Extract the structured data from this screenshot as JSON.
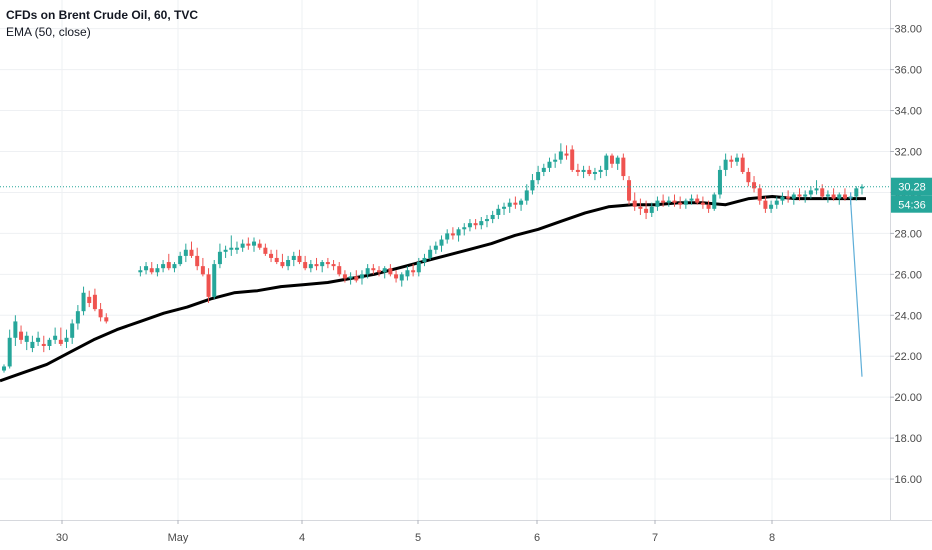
{
  "legend": {
    "symbol_line": "CFDs on Brent Crude Oil, 60, TVC",
    "indicator_line": "EMA (50, close)"
  },
  "price_badge": {
    "price": "30.28",
    "countdown": "54:36"
  },
  "colors": {
    "up": "#26a69a",
    "down": "#ef5350",
    "ema": "#000000",
    "projection": "#5eaed8",
    "price_badge": "#26a69a",
    "grid": "#eef0f3",
    "axis_text": "#4a4a4a"
  },
  "chart_data": {
    "type": "candlestick",
    "y_axis": {
      "ticks": [
        "16.00",
        "18.00",
        "20.00",
        "22.00",
        "24.00",
        "26.00",
        "28.00",
        "30.00",
        "32.00",
        "34.00",
        "36.00",
        "38.00"
      ],
      "range": [
        14.0,
        39.4
      ],
      "position": "right"
    },
    "x_axis": {
      "ticks": [
        "30",
        "May",
        "4",
        "5",
        "6",
        "7",
        "8"
      ]
    },
    "last_price": 30.28,
    "grid": true,
    "candles": [
      [
        0,
        21.3,
        21.6,
        21.2,
        21.5
      ],
      [
        0.25,
        21.5,
        23.3,
        21.4,
        22.9
      ],
      [
        0.5,
        22.9,
        24.0,
        22.5,
        23.7
      ],
      [
        0.75,
        23.2,
        23.5,
        22.6,
        22.8
      ],
      [
        1,
        22.7,
        23.2,
        22.3,
        23.0
      ],
      [
        1.25,
        22.4,
        23.0,
        22.2,
        22.7
      ],
      [
        1.5,
        22.7,
        23.2,
        22.5,
        22.9
      ],
      [
        1.75,
        22.6,
        23.0,
        22.2,
        22.5
      ],
      [
        2,
        22.5,
        22.9,
        22.3,
        22.8
      ],
      [
        2.25,
        22.8,
        23.4,
        22.6,
        23.0
      ],
      [
        2.5,
        22.8,
        23.4,
        22.5,
        22.6
      ],
      [
        2.75,
        22.7,
        23.3,
        22.4,
        22.9
      ],
      [
        3,
        22.9,
        23.8,
        22.6,
        23.6
      ],
      [
        3.25,
        23.6,
        24.5,
        23.3,
        24.2
      ],
      [
        3.5,
        24.2,
        25.4,
        24.0,
        25.1
      ],
      [
        3.75,
        24.9,
        25.2,
        24.4,
        24.6
      ],
      [
        4,
        25.0,
        25.3,
        24.2,
        24.3
      ],
      [
        4.25,
        24.3,
        24.6,
        23.7,
        23.9
      ],
      [
        4.5,
        23.9,
        24.1,
        23.6,
        23.7
      ],
      [
        6,
        26.1,
        26.4,
        25.9,
        26.2
      ],
      [
        6.25,
        26.2,
        26.6,
        26.0,
        26.4
      ],
      [
        6.5,
        26.3,
        26.6,
        26.0,
        26.1
      ],
      [
        6.75,
        26.1,
        26.5,
        25.9,
        26.3
      ],
      [
        7,
        26.3,
        26.7,
        26.1,
        26.5
      ],
      [
        7.25,
        26.6,
        27.0,
        26.2,
        26.3
      ],
      [
        7.5,
        26.3,
        26.6,
        26.1,
        26.5
      ],
      [
        7.75,
        26.5,
        27.1,
        26.4,
        26.9
      ],
      [
        8,
        26.9,
        27.5,
        26.6,
        27.2
      ],
      [
        8.25,
        27.2,
        27.6,
        26.8,
        26.9
      ],
      [
        8.5,
        26.9,
        27.3,
        26.2,
        26.4
      ],
      [
        8.75,
        26.4,
        26.8,
        25.9,
        26.0
      ],
      [
        9,
        26.0,
        26.3,
        24.6,
        24.9
      ],
      [
        9.25,
        24.9,
        26.7,
        24.8,
        26.5
      ],
      [
        9.5,
        26.5,
        27.5,
        26.3,
        27.1
      ],
      [
        9.75,
        27.1,
        27.4,
        26.8,
        27.2
      ],
      [
        10,
        27.2,
        27.9,
        26.9,
        27.3
      ],
      [
        10.25,
        27.2,
        27.6,
        27.0,
        27.3
      ],
      [
        10.5,
        27.3,
        27.7,
        27.1,
        27.5
      ],
      [
        10.75,
        27.5,
        27.8,
        27.2,
        27.4
      ],
      [
        11,
        27.4,
        27.8,
        27.1,
        27.6
      ],
      [
        11.25,
        27.5,
        27.7,
        27.2,
        27.3
      ],
      [
        11.5,
        27.3,
        27.5,
        26.9,
        27.0
      ],
      [
        11.75,
        27.0,
        27.2,
        26.6,
        26.8
      ],
      [
        12,
        26.8,
        27.2,
        26.5,
        26.6
      ],
      [
        12.25,
        26.6,
        27.0,
        26.3,
        26.4
      ],
      [
        12.5,
        26.4,
        26.9,
        26.2,
        26.7
      ],
      [
        12.75,
        26.7,
        27.1,
        26.4,
        26.9
      ],
      [
        13,
        26.9,
        27.2,
        26.5,
        26.6
      ],
      [
        13.25,
        26.6,
        26.9,
        26.2,
        26.3
      ],
      [
        13.5,
        26.3,
        26.7,
        26.1,
        26.5
      ],
      [
        13.75,
        26.5,
        26.8,
        26.2,
        26.4
      ],
      [
        14,
        26.4,
        26.7,
        26.1,
        26.6
      ],
      [
        14.25,
        26.6,
        26.8,
        26.3,
        26.5
      ],
      [
        14.5,
        26.5,
        26.7,
        26.2,
        26.4
      ],
      [
        14.75,
        26.4,
        26.6,
        25.9,
        26.0
      ],
      [
        15,
        26.0,
        26.2,
        25.6,
        25.8
      ],
      [
        15.25,
        25.8,
        26.1,
        25.5,
        25.9
      ],
      [
        15.5,
        25.9,
        26.2,
        25.6,
        25.7
      ],
      [
        15.75,
        25.8,
        26.2,
        25.5,
        26.0
      ],
      [
        16,
        26.0,
        26.5,
        25.8,
        26.3
      ],
      [
        16.25,
        26.3,
        26.5,
        26.0,
        26.2
      ],
      [
        16.5,
        26.2,
        26.4,
        25.9,
        26.1
      ],
      [
        16.75,
        26.1,
        26.4,
        25.8,
        26.3
      ],
      [
        17,
        26.3,
        26.5,
        25.9,
        26.0
      ],
      [
        17.25,
        26.0,
        26.2,
        25.6,
        25.8
      ],
      [
        17.5,
        25.7,
        26.1,
        25.4,
        26.0
      ],
      [
        17.75,
        25.9,
        26.4,
        25.7,
        26.2
      ],
      [
        18,
        26.2,
        26.5,
        25.9,
        26.1
      ],
      [
        18.25,
        26.1,
        26.8,
        25.9,
        26.6
      ],
      [
        18.5,
        26.6,
        27.0,
        26.4,
        26.8
      ],
      [
        18.75,
        26.8,
        27.4,
        26.7,
        27.2
      ],
      [
        19,
        27.2,
        27.6,
        27.0,
        27.4
      ],
      [
        19.25,
        27.4,
        27.9,
        27.1,
        27.7
      ],
      [
        19.5,
        27.7,
        28.2,
        27.5,
        28.0
      ],
      [
        19.75,
        28.0,
        28.3,
        27.7,
        27.9
      ],
      [
        20,
        27.9,
        28.3,
        27.6,
        28.2
      ],
      [
        20.25,
        28.2,
        28.5,
        27.9,
        28.3
      ],
      [
        20.5,
        28.3,
        28.7,
        28.1,
        28.5
      ],
      [
        20.75,
        28.5,
        28.7,
        28.2,
        28.4
      ],
      [
        21,
        28.4,
        28.8,
        28.2,
        28.6
      ],
      [
        21.25,
        28.6,
        28.9,
        28.3,
        28.7
      ],
      [
        21.5,
        28.7,
        29.1,
        28.5,
        28.9
      ],
      [
        21.75,
        28.9,
        29.4,
        28.7,
        29.2
      ],
      [
        22,
        29.2,
        29.5,
        28.9,
        29.3
      ],
      [
        22.25,
        29.3,
        29.7,
        29.0,
        29.5
      ],
      [
        22.5,
        29.5,
        29.8,
        29.2,
        29.4
      ],
      [
        22.75,
        29.4,
        29.7,
        29.1,
        29.6
      ],
      [
        23,
        29.6,
        30.4,
        29.4,
        30.1
      ],
      [
        23.25,
        30.1,
        30.9,
        29.9,
        30.6
      ],
      [
        23.5,
        30.6,
        31.3,
        30.4,
        31.0
      ],
      [
        23.75,
        31.0,
        31.4,
        30.8,
        31.2
      ],
      [
        24,
        31.2,
        31.7,
        31.0,
        31.5
      ],
      [
        24.25,
        31.5,
        31.9,
        31.2,
        31.6
      ],
      [
        24.5,
        31.6,
        32.4,
        31.4,
        32.0
      ],
      [
        24.75,
        31.9,
        32.3,
        31.6,
        31.8
      ],
      [
        25,
        32.1,
        32.3,
        31.0,
        31.1
      ],
      [
        25.25,
        31.1,
        31.4,
        30.8,
        31.0
      ],
      [
        25.5,
        31.0,
        31.3,
        30.7,
        31.1
      ],
      [
        25.75,
        31.1,
        31.3,
        30.8,
        30.9
      ],
      [
        26,
        30.9,
        31.2,
        30.6,
        31.0
      ],
      [
        26.25,
        31.0,
        31.3,
        30.7,
        31.1
      ],
      [
        26.5,
        31.1,
        31.9,
        30.8,
        31.8
      ],
      [
        26.75,
        31.8,
        31.9,
        31.2,
        31.4
      ],
      [
        27,
        31.4,
        31.8,
        31.1,
        31.7
      ],
      [
        27.25,
        31.7,
        31.9,
        30.6,
        30.8
      ],
      [
        27.5,
        30.6,
        30.8,
        29.4,
        29.6
      ],
      [
        27.75,
        29.6,
        30.0,
        29.1,
        29.3
      ],
      [
        28,
        29.3,
        29.7,
        28.9,
        29.2
      ],
      [
        28.25,
        29.2,
        29.6,
        28.7,
        29.0
      ],
      [
        28.5,
        29.0,
        29.5,
        28.8,
        29.3
      ],
      [
        28.75,
        29.3,
        29.8,
        29.1,
        29.6
      ],
      [
        29,
        29.6,
        29.9,
        29.3,
        29.5
      ],
      [
        29.25,
        29.5,
        29.8,
        29.3,
        29.6
      ],
      [
        29.5,
        29.6,
        29.9,
        29.3,
        29.5
      ],
      [
        29.75,
        29.5,
        29.8,
        29.2,
        29.4
      ],
      [
        30,
        29.4,
        29.7,
        29.2,
        29.6
      ],
      [
        30.25,
        29.6,
        29.9,
        29.4,
        29.7
      ],
      [
        30.5,
        29.7,
        29.9,
        29.4,
        29.5
      ],
      [
        30.75,
        29.5,
        29.8,
        29.2,
        29.4
      ],
      [
        31,
        29.4,
        29.6,
        29.0,
        29.2
      ],
      [
        31.25,
        29.2,
        30.0,
        29.1,
        29.9
      ],
      [
        31.5,
        29.9,
        31.3,
        29.7,
        31.1
      ],
      [
        31.75,
        31.1,
        31.9,
        30.8,
        31.6
      ],
      [
        32,
        31.6,
        31.8,
        31.2,
        31.5
      ],
      [
        32.25,
        31.5,
        31.9,
        31.3,
        31.7
      ],
      [
        32.5,
        31.7,
        31.9,
        30.9,
        31.0
      ],
      [
        32.75,
        31.0,
        31.2,
        30.3,
        30.5
      ],
      [
        33,
        30.5,
        30.8,
        30.0,
        30.2
      ],
      [
        33.25,
        30.2,
        30.4,
        29.4,
        29.6
      ],
      [
        33.5,
        29.6,
        29.8,
        29.0,
        29.2
      ],
      [
        33.75,
        29.2,
        29.6,
        29.0,
        29.4
      ],
      [
        34,
        29.4,
        29.8,
        29.2,
        29.6
      ],
      [
        34.25,
        29.6,
        30.0,
        29.4,
        29.8
      ],
      [
        34.5,
        29.8,
        30.1,
        29.5,
        29.7
      ],
      [
        34.75,
        29.7,
        30.0,
        29.4,
        29.9
      ],
      [
        35,
        29.9,
        30.2,
        29.6,
        29.8
      ],
      [
        35.25,
        29.8,
        30.1,
        29.5,
        29.9
      ],
      [
        35.5,
        29.9,
        30.3,
        29.7,
        30.1
      ],
      [
        35.75,
        30.1,
        30.6,
        29.9,
        30.2
      ],
      [
        36,
        30.2,
        30.4,
        29.7,
        29.8
      ],
      [
        36.25,
        29.8,
        30.1,
        29.5,
        29.9
      ],
      [
        36.5,
        29.9,
        30.2,
        29.6,
        29.7
      ],
      [
        36.75,
        29.7,
        30.0,
        29.4,
        29.9
      ],
      [
        37,
        29.9,
        30.2,
        29.6,
        29.7
      ],
      [
        37.25,
        29.7,
        30.0,
        29.4,
        29.8
      ],
      [
        37.5,
        29.8,
        30.3,
        29.6,
        30.2
      ],
      [
        37.75,
        30.2,
        30.4,
        29.9,
        30.28
      ]
    ],
    "ema": [
      [
        0,
        20.8
      ],
      [
        2,
        21.2
      ],
      [
        4,
        21.6
      ],
      [
        6,
        22.2
      ],
      [
        8,
        22.8
      ],
      [
        10,
        23.3
      ],
      [
        12,
        23.7
      ],
      [
        14,
        24.1
      ],
      [
        16,
        24.4
      ],
      [
        18,
        24.8
      ],
      [
        20,
        25.1
      ],
      [
        22,
        25.2
      ],
      [
        24,
        25.4
      ],
      [
        26,
        25.5
      ],
      [
        28,
        25.6
      ],
      [
        30,
        25.8
      ],
      [
        32,
        26.0
      ],
      [
        34,
        26.3
      ],
      [
        36,
        26.6
      ],
      [
        38,
        26.9
      ],
      [
        40,
        27.2
      ],
      [
        42,
        27.5
      ],
      [
        44,
        27.9
      ],
      [
        46,
        28.2
      ],
      [
        48,
        28.6
      ],
      [
        50,
        29.0
      ],
      [
        52,
        29.3
      ],
      [
        54,
        29.4
      ],
      [
        56,
        29.4
      ],
      [
        58,
        29.5
      ],
      [
        60,
        29.5
      ],
      [
        62,
        29.4
      ],
      [
        64,
        29.7
      ],
      [
        66,
        29.8
      ],
      [
        68,
        29.7
      ],
      [
        70,
        29.7
      ],
      [
        72,
        29.7
      ],
      [
        74,
        29.7
      ]
    ],
    "projection_line": [
      [
        37.25,
        30.0
      ],
      [
        37.25,
        29.6
      ],
      [
        37.75,
        21.0
      ]
    ]
  }
}
